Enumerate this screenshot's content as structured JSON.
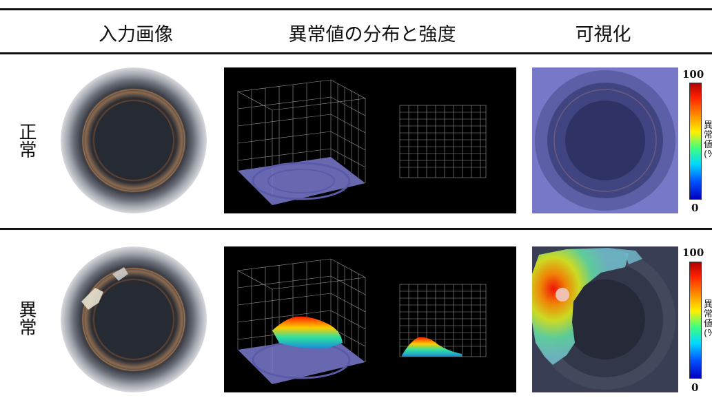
{
  "headers": {
    "input": "入力画像",
    "distribution": "異常値の分布と強度",
    "visualization": "可視化"
  },
  "rows": [
    {
      "label": "正常",
      "colorbar_max": "100",
      "colorbar_min": "0",
      "colorbar_label": "異常値(%)"
    },
    {
      "label": "異常",
      "colorbar_max": "100",
      "colorbar_min": "0",
      "colorbar_label": "異常値(%)"
    }
  ],
  "colors": {
    "rule": "#111111",
    "panel_bg": "#000000",
    "overlay_normal": "#7878c8"
  }
}
